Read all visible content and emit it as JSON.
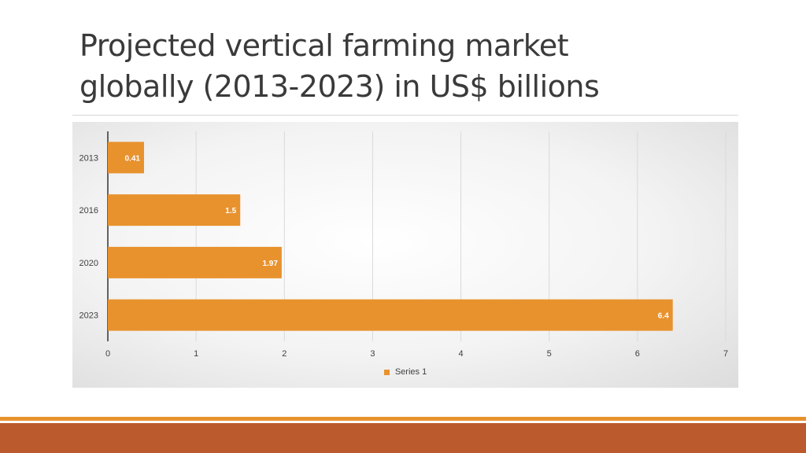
{
  "slide": {
    "title_line1": "Projected vertical farming market",
    "title_line2": "globally (2013-2023) in US$ billions"
  },
  "colors": {
    "bar": "#E8922E",
    "footer_bar": "#BB5A2C",
    "footer_stripe": "#E8922E"
  },
  "chart_data": {
    "type": "bar",
    "orientation": "horizontal",
    "categories": [
      "2013",
      "2016",
      "2020",
      "2023"
    ],
    "series": [
      {
        "name": "Series 1",
        "values": [
          0.41,
          1.5,
          1.97,
          6.4
        ]
      }
    ],
    "data_labels": [
      "0.41",
      "1.5",
      "1.97",
      "6.4"
    ],
    "x_ticks": [
      "0",
      "1",
      "2",
      "3",
      "4",
      "5",
      "6",
      "7"
    ],
    "xlim": [
      0,
      7
    ],
    "grid": true,
    "legend_position": "bottom"
  }
}
